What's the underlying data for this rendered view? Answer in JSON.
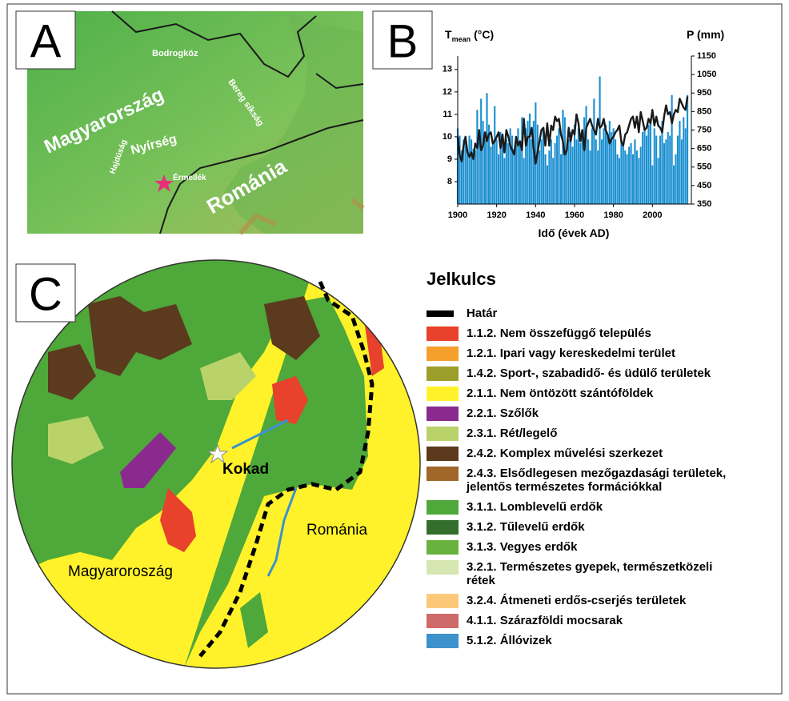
{
  "panel_a": {
    "letter": "A",
    "labels": [
      "Bodrogköz",
      "Bereg síkság",
      "Magyarország",
      "Hajdúság",
      "Nyírség",
      "Érmellék",
      "Románia"
    ]
  },
  "chart_data": {
    "type": "combo",
    "letter": "B",
    "y_label": {
      "main": "T",
      "sub": "mean",
      "unit": "(°C)"
    },
    "y2_label": "P (mm)",
    "x_label": "Idő (évek AD)",
    "xlim": [
      1900,
      2020
    ],
    "xticks": [
      1900,
      1920,
      1940,
      1960,
      1980,
      2000
    ],
    "ylim": [
      7,
      13.6
    ],
    "yticks": [
      8,
      9,
      10,
      11,
      12,
      13
    ],
    "y2lim": [
      350,
      1150
    ],
    "y2ticks": [
      350,
      450,
      550,
      650,
      750,
      850,
      950,
      1050,
      1150
    ],
    "x": [
      1900,
      1901,
      1902,
      1903,
      1904,
      1905,
      1906,
      1907,
      1908,
      1909,
      1910,
      1911,
      1912,
      1913,
      1914,
      1915,
      1916,
      1917,
      1918,
      1919,
      1920,
      1921,
      1922,
      1923,
      1924,
      1925,
      1926,
      1927,
      1928,
      1929,
      1930,
      1931,
      1932,
      1933,
      1934,
      1935,
      1936,
      1937,
      1938,
      1939,
      1940,
      1941,
      1942,
      1943,
      1944,
      1945,
      1946,
      1947,
      1948,
      1949,
      1950,
      1951,
      1952,
      1953,
      1954,
      1955,
      1956,
      1957,
      1958,
      1959,
      1960,
      1961,
      1962,
      1963,
      1964,
      1965,
      1966,
      1967,
      1968,
      1969,
      1970,
      1971,
      1972,
      1973,
      1974,
      1975,
      1976,
      1977,
      1978,
      1979,
      1980,
      1981,
      1982,
      1983,
      1984,
      1985,
      1986,
      1987,
      1988,
      1989,
      1990,
      1991,
      1992,
      1993,
      1994,
      1995,
      1996,
      1997,
      1998,
      1999,
      2000,
      2001,
      2002,
      2003,
      2004,
      2005,
      2006,
      2007,
      2008,
      2009,
      2010,
      2011,
      2012,
      2013,
      2014,
      2015,
      2016,
      2017,
      2018
    ],
    "series": [
      {
        "type": "bar",
        "axis": "y2",
        "color": "#1a8fd0",
        "values": [
          760,
          720,
          640,
          700,
          680,
          620,
          720,
          700,
          650,
          640,
          860,
          690,
          920,
          800,
          700,
          950,
          780,
          660,
          700,
          880,
          700,
          620,
          740,
          700,
          600,
          700,
          680,
          760,
          720,
          650,
          700,
          760,
          680,
          820,
          600,
          760,
          800,
          840,
          700,
          800,
          900,
          780,
          640,
          700,
          760,
          620,
          560,
          640,
          700,
          600,
          680,
          720,
          760,
          620,
          860,
          820,
          640,
          700,
          740,
          660,
          780,
          700,
          760,
          680,
          720,
          820,
          880,
          700,
          640,
          760,
          920,
          700,
          640,
          1040,
          700,
          760,
          780,
          720,
          800,
          740,
          760,
          700,
          620,
          600,
          700,
          660,
          640,
          620,
          660,
          680,
          620,
          700,
          640,
          600,
          660,
          740,
          760,
          720,
          780,
          800,
          560,
          760,
          720,
          600,
          720,
          800,
          680,
          700,
          740,
          720,
          940,
          560,
          620,
          720,
          800,
          700,
          820,
          760,
          940
        ]
      },
      {
        "type": "line",
        "color": "#1a1a1a",
        "values": [
          10.0,
          9.2,
          8.9,
          9.6,
          10.0,
          9.3,
          9.1,
          9.3,
          9.0,
          9.7,
          9.5,
          10.3,
          9.4,
          9.6,
          10.2,
          9.8,
          10.1,
          10.2,
          9.7,
          9.8,
          10.0,
          10.2,
          9.5,
          10.1,
          9.3,
          10.3,
          10.0,
          9.6,
          9.4,
          9.2,
          10.0,
          9.6,
          9.8,
          9.4,
          10.8,
          9.6,
          10.0,
          10.0,
          10.4,
          9.5,
          8.8,
          9.3,
          9.8,
          10.3,
          10.4,
          9.6,
          10.6,
          9.6,
          10.5,
          10.3,
          10.9,
          10.7,
          10.8,
          10.1,
          9.8,
          9.2,
          9.4,
          10.4,
          9.8,
          10.3,
          10.1,
          11.0,
          10.6,
          9.8,
          10.3,
          9.4,
          10.4,
          10.6,
          10.8,
          10.5,
          10.3,
          10.1,
          10.8,
          10.4,
          10.5,
          10.8,
          10.3,
          10.1,
          9.7,
          9.9,
          10.0,
          10.2,
          10.3,
          10.5,
          9.8,
          9.6,
          10.1,
          10.2,
          10.5,
          10.8,
          10.9,
          10.4,
          10.9,
          10.2,
          11.1,
          10.7,
          10.3,
          10.4,
          10.8,
          10.6,
          11.2,
          10.5,
          10.9,
          10.5,
          10.4,
          10.2,
          10.9,
          11.4,
          11.0,
          11.1,
          10.6,
          11.0,
          11.2,
          11.1,
          11.7,
          11.5,
          11.3,
          11.2,
          11.8
        ]
      }
    ]
  },
  "panel_c": {
    "letter": "C",
    "labels": [
      "Kokad",
      "Magyaroroszág",
      "Románia"
    ],
    "legend": {
      "title": "Jelkulcs",
      "items": [
        {
          "lines": [
            "Határ"
          ],
          "color": "#000000"
        },
        {
          "lines": [
            "1.1.2. Nem összefüggő település"
          ],
          "color": "#e8412c"
        },
        {
          "lines": [
            "1.2.1. Ipari vagy kereskedelmi terület"
          ],
          "color": "#f5a02a"
        },
        {
          "lines": [
            "1.4.2. Sport-, szabadidő- és üdülő területek"
          ],
          "color": "#9b9e2a"
        },
        {
          "lines": [
            "2.1.1. Nem öntözött szántóföldek"
          ],
          "color": "#fff22a"
        },
        {
          "lines": [
            "2.2.1. Szőlők"
          ],
          "color": "#8b2a8e"
        },
        {
          "lines": [
            "2.3.1. Rét/legelő"
          ],
          "color": "#b9d36a"
        },
        {
          "lines": [
            "2.4.2. Komplex művelési szerkezet"
          ],
          "color": "#5b3a1e"
        },
        {
          "lines": [
            "2.4.3. Elsődlegesen mezőgazdasági területek,",
            "jelentős természetes formációkkal"
          ],
          "color": "#a0662a"
        },
        {
          "lines": [
            "3.1.1. Lomblevelű erdők"
          ],
          "color": "#4fa83a"
        },
        {
          "lines": [
            "3.1.2. Tűlevelű erdők"
          ],
          "color": "#336e2c"
        },
        {
          "lines": [
            "3.1.3. Vegyes erdők"
          ],
          "color": "#6ab23e"
        },
        {
          "lines": [
            "3.2.1. Természetes gyepek, természetközeli",
            "rétek"
          ],
          "color": "#d6e6b0"
        },
        {
          "lines": [
            "3.2.4. Átmeneti erdős-cserjés területek"
          ],
          "color": "#fcc97a"
        },
        {
          "lines": [
            "4.1.1. Szárazföldi mocsarak"
          ],
          "color": "#cf6a6a"
        },
        {
          "lines": [
            "5.1.2. Állóvizek"
          ],
          "color": "#3d92cc"
        }
      ]
    }
  }
}
